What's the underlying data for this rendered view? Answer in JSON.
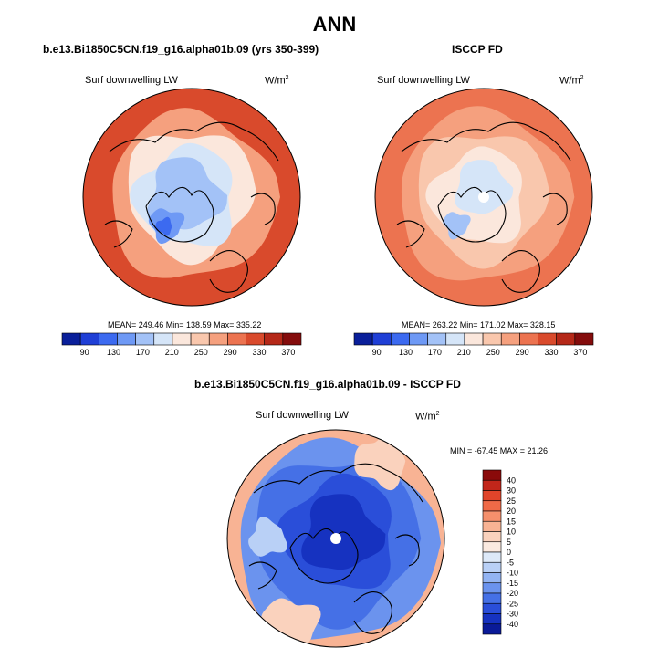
{
  "page_title": "ANN",
  "panels": [
    {
      "case_title": "b.e13.Bi1850C5CN.f19_g16.alpha01b.09 (yrs 350-399)",
      "variable": "Surf downwelling LW",
      "units_base": "W/m",
      "units_exp": "2",
      "stats": "MEAN= 249.46  Min= 138.59  Max= 335.22"
    },
    {
      "case_title": "ISCCP FD",
      "variable": "Surf downwelling LW",
      "units_base": "W/m",
      "units_exp": "2",
      "stats": "MEAN= 263.22  Min= 171.02  Max= 328.15"
    },
    {
      "case_title": "b.e13.Bi1850C5CN.f19_g16.alpha01b.09 - ISCCP FD",
      "variable": "Surf downwelling LW",
      "units_base": "W/m",
      "units_exp": "2",
      "stats": "MIN = -67.45 MAX =  21.26"
    }
  ],
  "chart_data": [
    {
      "type": "heatmap",
      "projection": "north-polar-stereographic",
      "title": "b.e13.Bi1850C5CN.f19_g16.alpha01b.09 (yrs 350-399)",
      "variable": "Surf downwelling LW",
      "units": "W/m2",
      "mean": 249.46,
      "min": 138.59,
      "max": 335.22,
      "colorbar_ticks": [
        "90",
        "130",
        "170",
        "210",
        "250",
        "290",
        "330",
        "370"
      ],
      "colorbar_colors": [
        "#0a1f9a",
        "#1f3fd6",
        "#3c6af0",
        "#6e99f5",
        "#a3c2f7",
        "#d5e5f8",
        "#fbe7dc",
        "#f9c7ad",
        "#f5a07e",
        "#ec7350",
        "#d94a2c",
        "#b52818",
        "#840c0c"
      ]
    },
    {
      "type": "heatmap",
      "projection": "north-polar-stereographic",
      "title": "ISCCP FD",
      "variable": "Surf downwelling LW",
      "units": "W/m2",
      "mean": 263.22,
      "min": 171.02,
      "max": 328.15,
      "colorbar_ticks": [
        "90",
        "130",
        "170",
        "210",
        "250",
        "290",
        "330",
        "370"
      ],
      "colorbar_colors": [
        "#0a1f9a",
        "#1f3fd6",
        "#3c6af0",
        "#6e99f5",
        "#a3c2f7",
        "#d5e5f8",
        "#fbe7dc",
        "#f9c7ad",
        "#f5a07e",
        "#ec7350",
        "#d94a2c",
        "#b52818",
        "#840c0c"
      ]
    },
    {
      "type": "heatmap",
      "projection": "north-polar-stereographic",
      "title": "b.e13.Bi1850C5CN.f19_g16.alpha01b.09 - ISCCP FD",
      "variable": "Surf downwelling LW",
      "units": "W/m2",
      "min": -67.45,
      "max": 21.26,
      "colorbar_ticks": [
        "40",
        "30",
        "25",
        "20",
        "15",
        "10",
        "5",
        "0",
        "-5",
        "-10",
        "-15",
        "-20",
        "-25",
        "-30",
        "-40"
      ],
      "colorbar_colors": [
        "#8a0a0a",
        "#c2261a",
        "#e0442a",
        "#ef6a47",
        "#f5906c",
        "#f8b394",
        "#fad2bd",
        "#fbeae0",
        "#dde9f8",
        "#b9d0f6",
        "#93b4f3",
        "#6b93ee",
        "#4570e6",
        "#2a4ed9",
        "#1632c0",
        "#0a1a98"
      ]
    }
  ]
}
